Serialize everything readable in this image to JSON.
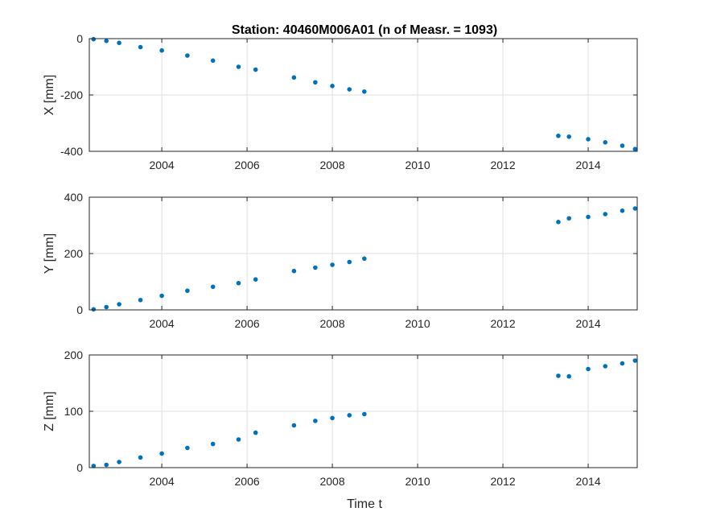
{
  "chart_data": {
    "type": "scatter",
    "title": "Station: 40460M006A01 (n of Measr. = 1093)",
    "xlabel": "Time t",
    "xlim": [
      2002.3,
      2015.15
    ],
    "x_ticks": [
      2004,
      2006,
      2008,
      2010,
      2012,
      2014
    ],
    "x_tick_labels": [
      "2004",
      "2006",
      "2008",
      "2010",
      "2012",
      "2014"
    ],
    "marker_color": "#0072BD",
    "panels": [
      {
        "name": "X",
        "ylabel": "X [mm]",
        "ylim": [
          -400,
          0
        ],
        "y_ticks": [
          -400,
          -200,
          0
        ],
        "y_tick_labels": [
          "-400",
          "-200",
          "0"
        ],
        "x": [
          2002.4,
          2002.7,
          2003.0,
          2003.5,
          2004.0,
          2004.6,
          2005.2,
          2005.8,
          2006.2,
          2007.1,
          2007.6,
          2008.0,
          2008.4,
          2008.75,
          2013.3,
          2013.55,
          2014.0,
          2014.4,
          2014.8,
          2015.1
        ],
        "y": [
          -2,
          -8,
          -15,
          -30,
          -42,
          -60,
          -78,
          -100,
          -110,
          -138,
          -155,
          -168,
          -180,
          -188,
          -345,
          -348,
          -357,
          -368,
          -380,
          -392
        ]
      },
      {
        "name": "Y",
        "ylabel": "Y [mm]",
        "ylim": [
          0,
          400
        ],
        "y_ticks": [
          0,
          200,
          400
        ],
        "y_tick_labels": [
          "0",
          "200",
          "400"
        ],
        "x": [
          2002.4,
          2002.7,
          2003.0,
          2003.5,
          2004.0,
          2004.6,
          2005.2,
          2005.8,
          2006.2,
          2007.1,
          2007.6,
          2008.0,
          2008.4,
          2008.75,
          2013.3,
          2013.55,
          2014.0,
          2014.4,
          2014.8,
          2015.1
        ],
        "y": [
          2,
          10,
          20,
          35,
          50,
          68,
          82,
          95,
          108,
          138,
          150,
          160,
          170,
          182,
          312,
          325,
          330,
          340,
          352,
          360
        ]
      },
      {
        "name": "Z",
        "ylabel": "Z [mm]",
        "ylim": [
          0,
          200
        ],
        "y_ticks": [
          0,
          100,
          200
        ],
        "y_tick_labels": [
          "0",
          "100",
          "200"
        ],
        "x": [
          2002.4,
          2002.7,
          2003.0,
          2003.5,
          2004.0,
          2004.6,
          2005.2,
          2005.8,
          2006.2,
          2007.1,
          2007.6,
          2008.0,
          2008.4,
          2008.75,
          2013.3,
          2013.55,
          2014.0,
          2014.4,
          2014.8,
          2015.1
        ],
        "y": [
          3,
          5,
          10,
          18,
          25,
          35,
          42,
          50,
          62,
          75,
          83,
          88,
          93,
          95,
          163,
          162,
          175,
          180,
          185,
          190
        ]
      }
    ]
  }
}
